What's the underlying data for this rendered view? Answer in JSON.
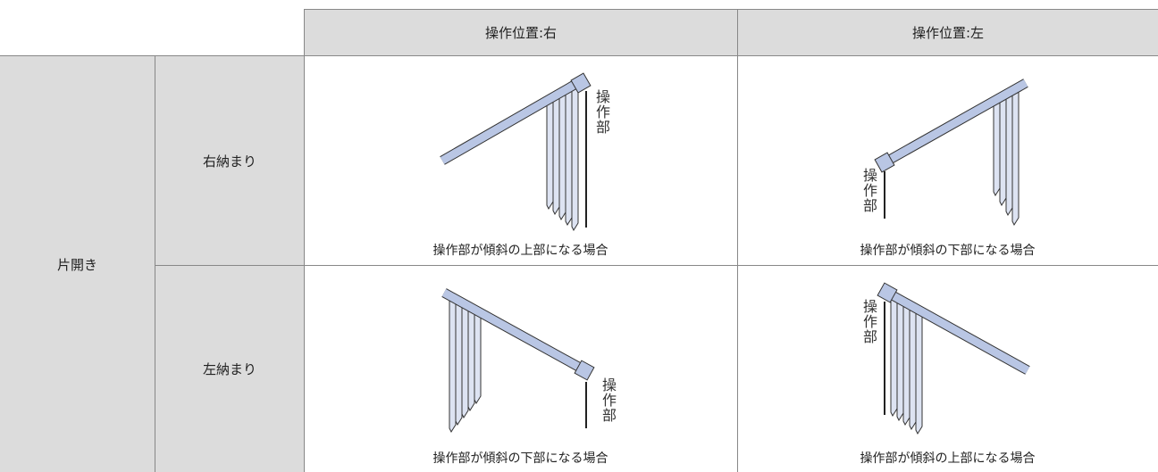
{
  "header": {
    "columns": [
      "操作位置:右",
      "操作位置:左"
    ]
  },
  "group_label": "片開き",
  "rows": [
    {
      "label": "右納まり",
      "cells": [
        {
          "caption": "操作部が傾斜の上部になる場合",
          "control_label": "操作部"
        },
        {
          "caption": "操作部が傾斜の下部になる場合",
          "control_label": "操作部"
        }
      ]
    },
    {
      "label": "左納まり",
      "cells": [
        {
          "caption": "操作部が傾斜の下部になる場合",
          "control_label": "操作部"
        },
        {
          "caption": "操作部が傾斜の上部になる場合",
          "control_label": "操作部"
        }
      ]
    }
  ]
}
